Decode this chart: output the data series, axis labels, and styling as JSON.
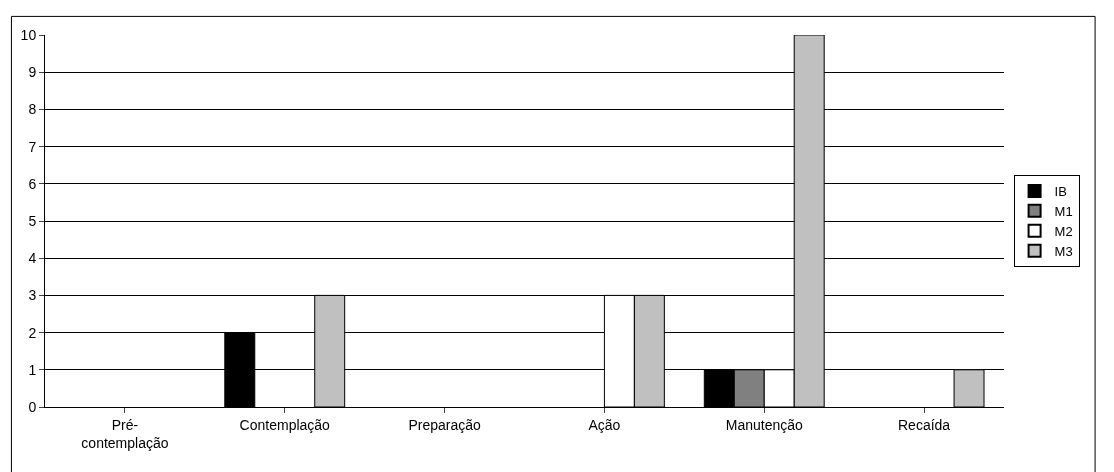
{
  "chart_data": {
    "type": "bar",
    "categories": [
      "Pré-\ncontemplação",
      "Contemplação",
      "Preparação",
      "Ação",
      "Manutenção",
      "Recaída"
    ],
    "series": [
      {
        "name": "IB",
        "color": "#000000",
        "values": [
          0,
          2,
          0,
          0,
          1,
          0
        ]
      },
      {
        "name": "M1",
        "color": "#808080",
        "values": [
          0,
          0,
          0,
          0,
          1,
          0
        ]
      },
      {
        "name": "M2",
        "color": "#ffffff",
        "values": [
          0,
          0,
          0,
          3,
          1,
          0
        ]
      },
      {
        "name": "M3",
        "color": "#c0c0c0",
        "values": [
          0,
          3,
          0,
          3,
          10,
          1
        ]
      }
    ],
    "ylim": [
      0,
      10
    ],
    "yticks": [
      0,
      1,
      2,
      3,
      4,
      5,
      6,
      7,
      8,
      9,
      10
    ],
    "grid": "y",
    "legend": "right"
  }
}
